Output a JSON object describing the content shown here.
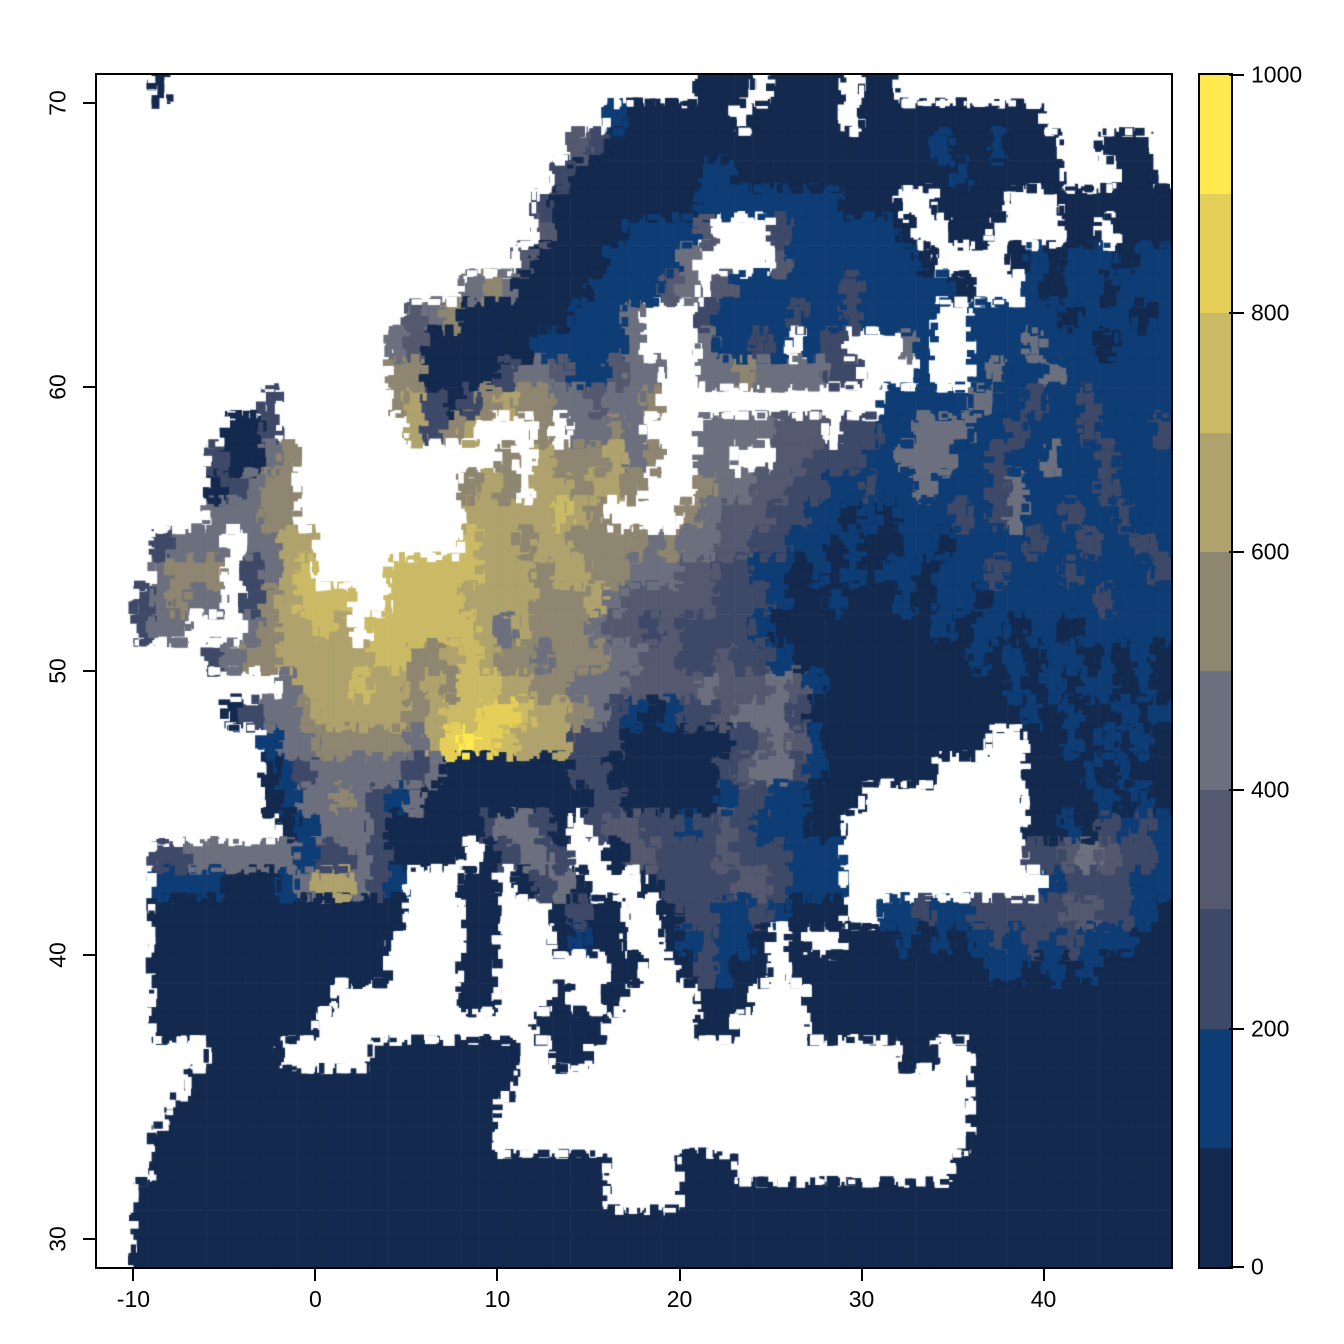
{
  "figure": {
    "kind": "raster-map-europe",
    "x_axis": {
      "tick_labels": [
        "-10",
        "0",
        "10",
        "20",
        "30",
        "40"
      ],
      "tick_values": [
        -10,
        0,
        10,
        20,
        30,
        40
      ]
    },
    "y_axis": {
      "tick_labels": [
        "30",
        "40",
        "50",
        "60",
        "70"
      ],
      "tick_values": [
        30,
        40,
        50,
        60,
        70
      ]
    },
    "lon_min": -12,
    "lon_max": 47,
    "lat_min": 29,
    "lat_max": 71
  },
  "legend": {
    "min": 0,
    "max": 1000,
    "tick_labels": [
      "0",
      "200",
      "400",
      "600",
      "800",
      "1000"
    ],
    "tick_values": [
      0,
      200,
      400,
      600,
      800,
      1000
    ]
  },
  "palette": {
    "no_data": "#ffffff",
    "colors": [
      "#13294E",
      "#0E3C74",
      "#3E4968",
      "#54596F",
      "#6C707E",
      "#8E8670",
      "#AFA26C",
      "#CBBA65",
      "#E5CF58",
      "#FFE94E"
    ]
  },
  "raster": {
    "cols": 59,
    "rows": 42,
    "value_chars": "0123456789",
    "no_data_char": ".",
    "bucket_size": 100,
    "rows_data": [
      "...0.............................000.0000.00...............",
      "............................1000000.00000.0000000000.......",
      "..........................320000000000000000001001000..000.",
      ".........................2000000011000000000000100000...00.",
      "........................20000000011111111000..0000...000000",
      "........................3000011113...21111110..00....00.000",
      ".......................3000011114....311111110....010111011",
      "....................4540000111134.31111112111110...10110111",
      ".................3450000001114...2111121121111..11111011101",
      "................43000000111114...41121.12...41..11141110111",
      "................550000244311344..445444422...1..14114111111",
      ".........2......562025655443445............1111141121121111",
      ".......002.......6256...5.4454...4444333.221144411211121112",
      "......20045...........5.6555645..44..3322211444112114112111",
      "......02455.........565.665665...54433221121141112411112111",
      "......44455.........66666765....543332211010111212411211211",
      "...2444.4466........766566555545443322110100110111121121121",
      "...4555.2467....7777766656655444332211010101101112111211112",
      "..24544.256777..7777666655564333332221001000101101111112111",
      "..244...456676.77777764655543323222210000000001011011011111",
      "......24556666677556765545554433223221000000000010101101010",
      "..........4666766565776655444333343334310000000000101011010",
      ".......0244566666567788766542101223444200000000000010100101",
      ".........1445555546898766622200000023431000000000..00101010",
      ".........0124444424000000022000000234421000000.....00010100",
      ".........014454214000000000220000012211000.........00001010",
      "..........0144420000024420.23322123211100..........00102121",
      "...22444444122420000.02442..0332223222111..........22343221",
      "...11110001466421...00.0240...02222332111...........1222211",
      "...00000000000000...00...0200..0221121000..1121122222332210",
      "...0000000000000....00...0100..012110.0..000101012121211100",
      "...0000000000000....00......00..02100.000000000001101010000",
      "...0000000000.......00...0..0....000...00000000000000000000",
      "...000000000............0000.....00....00000000000000000000",
      "......0000.....00000000..00.................00..00000000000",
      ".....000000000000000000.........................00000000000",
      "....000000000000000000..........................00000000000",
      "...0000000000000000000..........................00000000000",
      "...0000000000000000000000000....000............000000000000",
      "..00000000000000000000000000....000000000000000000000000000",
      "..000000000000000000000000000000000000000000000000000000000",
      "..000000000000000000000000000000000000000000000000000000000"
    ]
  }
}
